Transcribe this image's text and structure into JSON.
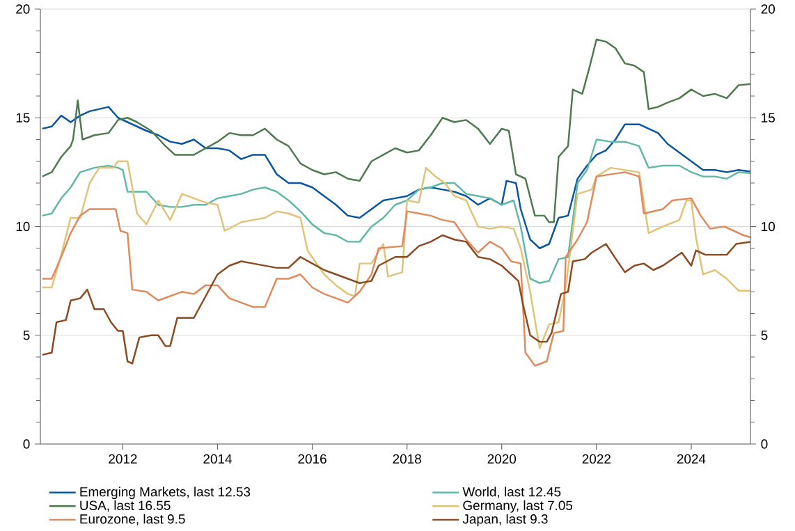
{
  "chart_data": {
    "type": "line",
    "xlim": [
      2010.26,
      2025.25
    ],
    "xticks": [
      2012,
      2014,
      2016,
      2018,
      2020,
      2022,
      2024
    ],
    "ylim": [
      0,
      20
    ],
    "yticks": [
      0,
      5,
      10,
      15,
      20
    ],
    "y2lim": [
      0,
      20
    ],
    "y2ticks": [
      0,
      5,
      10,
      15,
      20
    ],
    "grid": "y",
    "legend": "bottom",
    "series": [
      {
        "name": "Emerging Markets, last 12.53",
        "color": "#0b56a3",
        "x": [
          2010.3,
          2010.5,
          2010.7,
          2010.9,
          2011.1,
          2011.3,
          2011.5,
          2011.7,
          2011.9,
          2012.1,
          2012.3,
          2012.5,
          2012.75,
          2013.0,
          2013.25,
          2013.5,
          2013.75,
          2014.0,
          2014.25,
          2014.5,
          2014.75,
          2015.0,
          2015.25,
          2015.5,
          2015.75,
          2016.0,
          2016.25,
          2016.5,
          2016.75,
          2017.0,
          2017.25,
          2017.5,
          2017.75,
          2018.0,
          2018.25,
          2018.5,
          2018.75,
          2019.0,
          2019.25,
          2019.5,
          2019.75,
          2020.0,
          2020.1,
          2020.3,
          2020.4,
          2020.6,
          2020.8,
          2021.0,
          2021.2,
          2021.4,
          2021.6,
          2021.8,
          2022.0,
          2022.2,
          2022.4,
          2022.6,
          2022.9,
          2023.1,
          2023.3,
          2023.5,
          2023.75,
          2024.0,
          2024.25,
          2024.5,
          2024.75,
          2025.0,
          2025.25
        ],
        "values": [
          14.5,
          14.6,
          15.1,
          14.8,
          15.1,
          15.3,
          15.4,
          15.5,
          15.0,
          14.8,
          14.6,
          14.4,
          14.2,
          13.9,
          13.8,
          14.0,
          13.6,
          13.6,
          13.5,
          13.1,
          13.3,
          13.3,
          12.4,
          12.0,
          12.0,
          11.8,
          11.4,
          11.0,
          10.5,
          10.4,
          10.8,
          11.2,
          11.3,
          11.4,
          11.7,
          11.8,
          11.7,
          11.6,
          11.4,
          11.0,
          11.3,
          11.0,
          12.1,
          12.0,
          10.8,
          9.4,
          9.0,
          9.2,
          10.4,
          10.5,
          12.2,
          12.8,
          13.3,
          13.5,
          14.0,
          14.7,
          14.7,
          14.5,
          14.3,
          13.8,
          13.4,
          13.0,
          12.6,
          12.6,
          12.5,
          12.6,
          12.53
        ]
      },
      {
        "name": "World, last 12.45",
        "color": "#5fb9a6",
        "x": [
          2010.3,
          2010.5,
          2010.7,
          2010.9,
          2011.1,
          2011.4,
          2011.7,
          2011.9,
          2012.0,
          2012.1,
          2012.5,
          2012.75,
          2013.0,
          2013.25,
          2013.5,
          2013.75,
          2014.0,
          2014.25,
          2014.5,
          2014.75,
          2015.0,
          2015.25,
          2015.5,
          2015.75,
          2016.0,
          2016.25,
          2016.5,
          2016.75,
          2017.0,
          2017.25,
          2017.5,
          2017.75,
          2018.0,
          2018.25,
          2018.5,
          2018.75,
          2019.0,
          2019.25,
          2019.5,
          2019.75,
          2020.0,
          2020.25,
          2020.4,
          2020.6,
          2020.8,
          2021.0,
          2021.2,
          2021.4,
          2021.6,
          2021.8,
          2022.0,
          2022.3,
          2022.6,
          2022.9,
          2023.1,
          2023.4,
          2023.75,
          2024.0,
          2024.25,
          2024.5,
          2024.75,
          2025.0,
          2025.25
        ],
        "values": [
          10.5,
          10.6,
          11.3,
          11.8,
          12.5,
          12.7,
          12.8,
          12.7,
          12.6,
          11.6,
          11.6,
          11.0,
          10.9,
          10.9,
          11.0,
          11.0,
          11.3,
          11.4,
          11.5,
          11.7,
          11.8,
          11.6,
          11.2,
          10.7,
          10.1,
          9.7,
          9.6,
          9.3,
          9.3,
          10.0,
          10.4,
          11.0,
          11.2,
          11.7,
          11.8,
          12.0,
          12.0,
          11.5,
          11.4,
          11.3,
          11.0,
          11.2,
          10.0,
          7.6,
          7.4,
          7.5,
          8.5,
          8.6,
          12.0,
          12.6,
          14.0,
          13.9,
          13.9,
          13.7,
          12.7,
          12.8,
          12.8,
          12.5,
          12.3,
          12.3,
          12.2,
          12.5,
          12.45
        ]
      },
      {
        "name": "USA, last 16.55",
        "color": "#4f7a50",
        "x": [
          2010.3,
          2010.5,
          2010.7,
          2010.9,
          2010.95,
          2011.05,
          2011.15,
          2011.4,
          2011.7,
          2011.9,
          2012.1,
          2012.3,
          2012.6,
          2012.9,
          2013.1,
          2013.5,
          2013.75,
          2014.0,
          2014.25,
          2014.5,
          2014.75,
          2015.0,
          2015.25,
          2015.5,
          2015.75,
          2016.0,
          2016.25,
          2016.5,
          2016.75,
          2017.0,
          2017.25,
          2017.5,
          2017.75,
          2018.0,
          2018.25,
          2018.5,
          2018.75,
          2019.0,
          2019.25,
          2019.5,
          2019.75,
          2020.0,
          2020.15,
          2020.3,
          2020.5,
          2020.7,
          2020.9,
          2021.0,
          2021.1,
          2021.2,
          2021.4,
          2021.5,
          2021.7,
          2021.85,
          2022.0,
          2022.2,
          2022.4,
          2022.6,
          2022.8,
          2023.0,
          2023.1,
          2023.3,
          2023.5,
          2023.75,
          2024.0,
          2024.25,
          2024.5,
          2024.75,
          2025.0,
          2025.25
        ],
        "values": [
          12.3,
          12.5,
          13.2,
          13.7,
          14.0,
          15.8,
          14.0,
          14.2,
          14.3,
          14.9,
          15.0,
          14.8,
          14.4,
          13.7,
          13.3,
          13.3,
          13.6,
          13.9,
          14.3,
          14.2,
          14.2,
          14.5,
          14.0,
          13.7,
          12.9,
          12.6,
          12.4,
          12.5,
          12.2,
          12.1,
          13.0,
          13.3,
          13.6,
          13.4,
          13.5,
          14.2,
          15.0,
          14.8,
          14.9,
          14.5,
          13.8,
          14.5,
          14.4,
          12.4,
          12.2,
          10.5,
          10.5,
          10.2,
          10.2,
          13.2,
          13.7,
          16.3,
          16.1,
          17.3,
          18.6,
          18.5,
          18.2,
          17.5,
          17.4,
          17.1,
          15.4,
          15.5,
          15.7,
          15.9,
          16.3,
          16.0,
          16.1,
          15.9,
          16.5,
          16.55
        ]
      },
      {
        "name": "Germany, last 7.05",
        "color": "#e0c279",
        "x": [
          2010.3,
          2010.5,
          2010.7,
          2010.9,
          2011.1,
          2011.3,
          2011.5,
          2011.8,
          2011.9,
          2012.1,
          2012.3,
          2012.5,
          2012.75,
          2013.0,
          2013.25,
          2013.5,
          2013.75,
          2014.0,
          2014.15,
          2014.5,
          2014.75,
          2015.0,
          2015.25,
          2015.5,
          2015.75,
          2015.9,
          2016.25,
          2016.5,
          2016.75,
          2016.9,
          2017.0,
          2017.25,
          2017.5,
          2017.6,
          2017.9,
          2018.0,
          2018.25,
          2018.4,
          2018.6,
          2018.8,
          2019.0,
          2019.25,
          2019.5,
          2019.75,
          2020.0,
          2020.25,
          2020.4,
          2020.6,
          2020.8,
          2021.0,
          2021.2,
          2021.35,
          2021.6,
          2021.9,
          2022.0,
          2022.3,
          2022.6,
          2022.9,
          2023.1,
          2023.4,
          2023.75,
          2023.9,
          2024.0,
          2024.1,
          2024.25,
          2024.5,
          2024.75,
          2025.0,
          2025.25
        ],
        "values": [
          7.2,
          7.2,
          8.7,
          10.4,
          10.4,
          12.0,
          12.7,
          12.7,
          13.0,
          13.0,
          10.6,
          10.1,
          11.2,
          10.3,
          11.5,
          11.3,
          11.1,
          11.0,
          9.8,
          10.2,
          10.3,
          10.4,
          10.7,
          10.6,
          10.4,
          8.9,
          7.8,
          7.3,
          6.9,
          6.8,
          8.3,
          8.3,
          9.2,
          7.7,
          7.9,
          11.2,
          11.1,
          12.7,
          12.3,
          12.0,
          11.4,
          11.2,
          10.0,
          9.9,
          10.0,
          9.9,
          9.0,
          7.0,
          4.4,
          5.5,
          5.6,
          7.2,
          11.5,
          11.7,
          12.3,
          12.7,
          12.6,
          12.5,
          9.7,
          10.0,
          10.3,
          11.2,
          11.2,
          9.5,
          7.8,
          8.0,
          7.6,
          7.05,
          7.05
        ]
      },
      {
        "name": "Eurozone, last 9.5",
        "color": "#e08a5c",
        "x": [
          2010.3,
          2010.5,
          2010.7,
          2010.9,
          2011.1,
          2011.3,
          2011.6,
          2011.85,
          2011.95,
          2012.1,
          2012.2,
          2012.5,
          2012.75,
          2013.0,
          2013.25,
          2013.5,
          2013.75,
          2014.0,
          2014.25,
          2014.5,
          2014.75,
          2015.0,
          2015.25,
          2015.5,
          2015.75,
          2016.0,
          2016.25,
          2016.5,
          2016.75,
          2017.0,
          2017.25,
          2017.4,
          2017.9,
          2018.0,
          2018.25,
          2018.5,
          2018.75,
          2019.0,
          2019.25,
          2019.5,
          2019.75,
          2020.0,
          2020.2,
          2020.4,
          2020.5,
          2020.7,
          2020.95,
          2021.1,
          2021.3,
          2021.35,
          2021.6,
          2021.8,
          2022.0,
          2022.3,
          2022.6,
          2022.9,
          2023.0,
          2023.4,
          2023.6,
          2024.0,
          2024.2,
          2024.4,
          2024.7,
          2024.9,
          2025.1,
          2025.25
        ],
        "values": [
          7.6,
          7.6,
          8.6,
          9.7,
          10.5,
          10.8,
          10.8,
          10.8,
          9.8,
          9.7,
          7.1,
          7.0,
          6.6,
          6.8,
          7.0,
          6.9,
          7.3,
          7.3,
          6.7,
          6.5,
          6.3,
          6.3,
          7.6,
          7.6,
          7.8,
          7.2,
          6.9,
          6.7,
          6.5,
          7.0,
          7.8,
          9.0,
          9.1,
          10.7,
          10.6,
          10.5,
          10.3,
          10.2,
          9.4,
          8.8,
          9.3,
          9.0,
          8.4,
          8.3,
          4.2,
          3.6,
          3.8,
          5.1,
          5.2,
          8.6,
          9.4,
          10.2,
          12.3,
          12.4,
          12.5,
          12.3,
          10.6,
          10.8,
          11.2,
          11.3,
          10.5,
          9.9,
          10.0,
          9.8,
          9.6,
          9.5
        ]
      },
      {
        "name": "Japan, last 9.3",
        "color": "#8b4a20",
        "x": [
          2010.3,
          2010.5,
          2010.6,
          2010.8,
          2010.9,
          2011.1,
          2011.25,
          2011.4,
          2011.6,
          2011.75,
          2011.9,
          2012.0,
          2012.1,
          2012.2,
          2012.35,
          2012.6,
          2012.75,
          2012.9,
          2013.0,
          2013.15,
          2013.5,
          2013.75,
          2014.0,
          2014.25,
          2014.5,
          2014.75,
          2015.0,
          2015.25,
          2015.5,
          2015.75,
          2016.0,
          2016.25,
          2016.5,
          2016.75,
          2017.0,
          2017.25,
          2017.4,
          2017.75,
          2018.0,
          2018.25,
          2018.5,
          2018.75,
          2019.0,
          2019.25,
          2019.5,
          2019.75,
          2020.0,
          2020.2,
          2020.35,
          2020.45,
          2020.6,
          2020.8,
          2020.95,
          2021.05,
          2021.25,
          2021.4,
          2021.5,
          2021.75,
          2021.9,
          2022.2,
          2022.35,
          2022.6,
          2022.8,
          2023.0,
          2023.2,
          2023.4,
          2023.6,
          2023.8,
          2024.0,
          2024.1,
          2024.3,
          2024.6,
          2024.75,
          2024.95,
          2025.25
        ],
        "values": [
          4.1,
          4.2,
          5.6,
          5.7,
          6.6,
          6.7,
          7.1,
          6.2,
          6.2,
          5.6,
          5.2,
          5.2,
          3.8,
          3.7,
          4.9,
          5.0,
          5.0,
          4.5,
          4.5,
          5.8,
          5.8,
          6.8,
          7.8,
          8.2,
          8.4,
          8.3,
          8.2,
          8.1,
          8.1,
          8.6,
          8.3,
          8.0,
          7.8,
          7.6,
          7.4,
          7.5,
          8.2,
          8.6,
          8.6,
          9.1,
          9.3,
          9.6,
          9.4,
          9.3,
          8.6,
          8.5,
          8.2,
          7.8,
          7.5,
          6.4,
          5.0,
          4.7,
          4.7,
          5.1,
          6.9,
          7.0,
          8.4,
          8.5,
          8.8,
          9.2,
          8.7,
          7.9,
          8.2,
          8.3,
          8.0,
          8.2,
          8.5,
          8.8,
          8.2,
          8.9,
          8.7,
          8.7,
          8.7,
          9.2,
          9.3
        ]
      }
    ]
  }
}
